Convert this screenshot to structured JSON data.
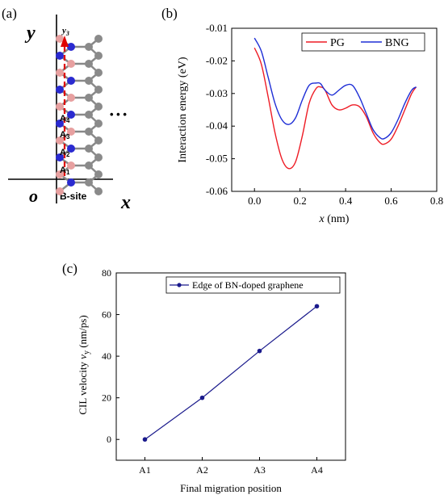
{
  "panel_a": {
    "label": "(a)",
    "y_axis": "y",
    "x_axis": "x",
    "origin": "o",
    "path_label_main": "y",
    "path_label_sub": "3",
    "site_label": "B-site",
    "ellipsis": "• • •",
    "sites": [
      {
        "main": "A",
        "sub": "4"
      },
      {
        "main": "A",
        "sub": "3"
      },
      {
        "main": "A",
        "sub": "2"
      },
      {
        "main": "A",
        "sub": "1"
      }
    ]
  },
  "chart_data": [
    {
      "panel_label": "(b)",
      "type": "line",
      "xlabel_var": "x",
      "xlabel_unit": " (nm)",
      "ylabel": "Interaction energy (eV)",
      "xlim": [
        -0.1,
        0.8
      ],
      "ylim": [
        -0.06,
        -0.01
      ],
      "xticks": [
        0.0,
        0.2,
        0.4,
        0.6,
        0.8
      ],
      "xtick_labels": [
        "0.0",
        "0.2",
        "0.4",
        "0.6",
        "0.8"
      ],
      "yticks": [
        -0.06,
        -0.05,
        -0.04,
        -0.03,
        -0.02,
        -0.01
      ],
      "ytick_labels": [
        "-0.06",
        "-0.05",
        "-0.04",
        "-0.03",
        "-0.02",
        "-0.01"
      ],
      "legend_position": "top-right",
      "series": [
        {
          "name": "PG",
          "color": "#ee1c25",
          "x": [
            0.0,
            0.03,
            0.06,
            0.09,
            0.12,
            0.15,
            0.18,
            0.21,
            0.24,
            0.27,
            0.29,
            0.31,
            0.34,
            0.37,
            0.4,
            0.43,
            0.46,
            0.49,
            0.52,
            0.55,
            0.57,
            0.6,
            0.63,
            0.66,
            0.69,
            0.71
          ],
          "y": [
            -0.016,
            -0.021,
            -0.031,
            -0.042,
            -0.05,
            -0.053,
            -0.051,
            -0.043,
            -0.033,
            -0.0285,
            -0.028,
            -0.029,
            -0.0335,
            -0.035,
            -0.0345,
            -0.0335,
            -0.034,
            -0.037,
            -0.042,
            -0.045,
            -0.0455,
            -0.044,
            -0.04,
            -0.035,
            -0.03,
            -0.028
          ]
        },
        {
          "name": "BNG",
          "color": "#1f2fd6",
          "x": [
            0.0,
            0.03,
            0.06,
            0.09,
            0.12,
            0.15,
            0.18,
            0.21,
            0.24,
            0.27,
            0.29,
            0.31,
            0.34,
            0.37,
            0.4,
            0.43,
            0.46,
            0.49,
            0.52,
            0.55,
            0.57,
            0.6,
            0.63,
            0.66,
            0.69,
            0.71
          ],
          "y": [
            -0.013,
            -0.017,
            -0.025,
            -0.033,
            -0.038,
            -0.0395,
            -0.0375,
            -0.032,
            -0.0275,
            -0.0268,
            -0.027,
            -0.029,
            -0.0305,
            -0.029,
            -0.0275,
            -0.0275,
            -0.031,
            -0.036,
            -0.041,
            -0.0435,
            -0.0438,
            -0.042,
            -0.038,
            -0.033,
            -0.029,
            -0.028
          ]
        }
      ]
    },
    {
      "panel_label": "(c)",
      "type": "line",
      "categories": [
        "A1",
        "A2",
        "A3",
        "A4"
      ],
      "xlabel": "Final migration position",
      "ylabel_text": "CIL velocity  ",
      "ylabel_var": "v",
      "ylabel_sub": "y",
      "ylabel_unit": " (nm/ps)",
      "ylim": [
        -10,
        80
      ],
      "yticks": [
        0,
        20,
        40,
        60,
        80
      ],
      "ytick_labels": [
        "0",
        "20",
        "40",
        "60",
        "80"
      ],
      "legend_position": "top-right",
      "series": [
        {
          "name": "Edge of BN-doped graphene",
          "color": "#1a1a8c",
          "values": [
            0,
            20,
            42.5,
            64
          ]
        }
      ]
    }
  ]
}
